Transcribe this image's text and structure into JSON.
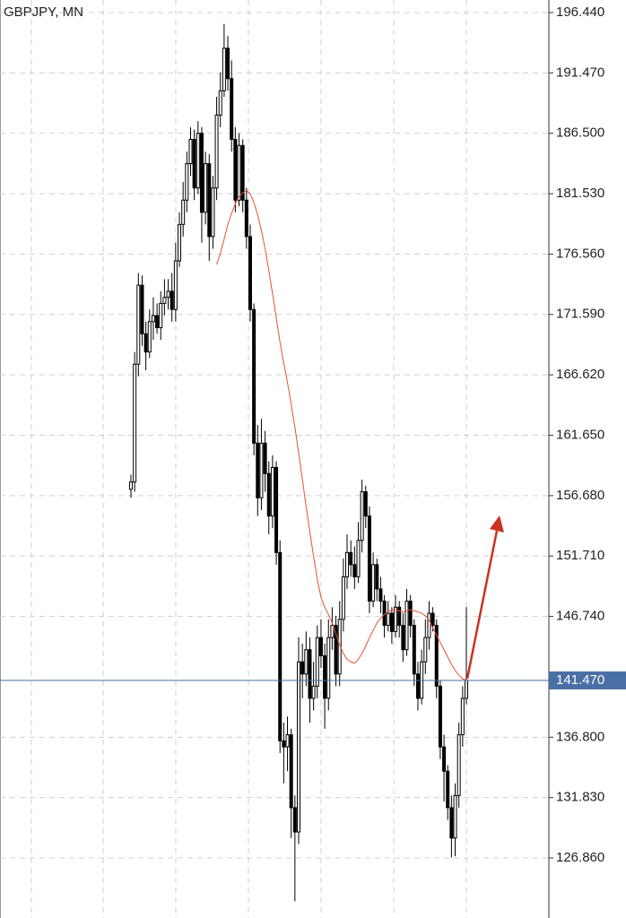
{
  "chart_data": {
    "type": "candlestick",
    "title": "GBPJPY, MN",
    "ylim": [
      121.92,
      197.47
    ],
    "yticks": [
      {
        "value": 196.44,
        "label": "196.440"
      },
      {
        "value": 191.47,
        "label": "191.470"
      },
      {
        "value": 186.5,
        "label": "186.500"
      },
      {
        "value": 181.53,
        "label": "181.530"
      },
      {
        "value": 176.56,
        "label": "176.560"
      },
      {
        "value": 171.59,
        "label": "171.590"
      },
      {
        "value": 166.62,
        "label": "166.620"
      },
      {
        "value": 161.65,
        "label": "161.650"
      },
      {
        "value": 156.68,
        "label": "156.680"
      },
      {
        "value": 151.71,
        "label": "151.710"
      },
      {
        "value": 146.74,
        "label": "146.740"
      },
      {
        "value": 136.8,
        "label": "136.800"
      },
      {
        "value": 131.83,
        "label": "131.830"
      },
      {
        "value": 126.86,
        "label": "126.860"
      }
    ],
    "grid": true,
    "current_price": {
      "value": 141.47,
      "label": "141.470"
    },
    "up_color": "#ffffff",
    "down_color": "#000000",
    "ma_color": "#e8503a",
    "price_line_color": "#4a6fa5",
    "open": [
      157.2,
      157.8,
      167.5,
      174.0,
      170.0,
      168.5,
      171.0,
      171.5,
      170.5,
      172.5,
      173.0,
      173.5,
      172.0,
      176.0,
      179.0,
      181.0,
      184.0,
      186.0,
      182.0,
      186.5,
      180.0,
      184.0,
      178.0,
      182.0,
      188.0,
      190.0,
      193.5,
      191.0,
      186.0,
      181.0,
      185.5,
      181.0,
      178.0,
      172.0,
      161.0,
      156.5,
      161.0,
      158.5,
      155.0,
      159.0,
      152.0,
      136.5,
      136.0,
      137.0,
      131.0,
      129.0,
      143.0,
      142.0,
      144.0,
      140.0,
      141.0,
      145.0,
      143.5,
      140.0,
      145.0,
      146.0,
      142.0,
      146.5,
      150.0,
      152.0,
      151.0,
      150.0,
      153.0,
      157.0,
      155.0,
      148.0,
      151.0,
      149.0,
      148.0,
      146.0,
      147.0,
      145.5,
      147.5,
      146.0,
      144.0,
      148.0,
      146.0,
      142.0,
      140.0,
      143.0,
      145.0,
      147.0,
      146.0,
      141.0,
      136.0,
      134.0,
      131.0,
      128.5,
      132.0,
      137.0,
      140.0
    ],
    "high": [
      158.4,
      168.5,
      175.0,
      174.8,
      171.0,
      172.0,
      173.0,
      172.5,
      173.5,
      174.5,
      174.5,
      175.0,
      177.5,
      180.0,
      182.5,
      185.0,
      187.0,
      186.8,
      187.5,
      187.0,
      185.0,
      184.8,
      183.0,
      189.5,
      191.5,
      195.5,
      194.5,
      192.5,
      187.0,
      186.5,
      186.0,
      182.0,
      179.0,
      172.5,
      162.5,
      163.0,
      162.0,
      159.5,
      160.0,
      159.5,
      153.0,
      138.0,
      138.5,
      137.5,
      132.0,
      145.0,
      144.5,
      145.5,
      145.0,
      143.0,
      146.0,
      146.5,
      144.5,
      146.5,
      147.5,
      146.8,
      148.0,
      151.5,
      153.5,
      153.0,
      152.5,
      154.5,
      158.0,
      157.5,
      155.8,
      152.0,
      151.5,
      150.0,
      148.5,
      148.0,
      147.5,
      148.5,
      148.0,
      147.0,
      149.0,
      148.5,
      146.5,
      143.0,
      144.0,
      146.5,
      148.0,
      147.5,
      146.5,
      141.5,
      137.0,
      134.5,
      132.0,
      133.0,
      138.0,
      141.0,
      147.5
    ],
    "low": [
      156.5,
      157.0,
      166.5,
      169.0,
      167.0,
      168.0,
      169.5,
      170.0,
      169.5,
      171.5,
      172.0,
      171.0,
      171.0,
      175.5,
      178.0,
      180.0,
      183.0,
      181.0,
      181.5,
      177.5,
      179.0,
      176.0,
      177.0,
      181.0,
      187.0,
      189.5,
      190.0,
      185.0,
      180.0,
      180.5,
      180.0,
      177.0,
      171.0,
      160.0,
      155.0,
      155.5,
      157.0,
      153.5,
      154.0,
      151.0,
      135.5,
      133.0,
      134.0,
      128.5,
      123.3,
      128.0,
      140.0,
      141.0,
      138.0,
      139.0,
      140.0,
      142.5,
      137.5,
      139.0,
      144.0,
      141.0,
      141.0,
      145.5,
      149.0,
      150.0,
      149.0,
      149.5,
      152.0,
      154.0,
      147.0,
      147.5,
      148.0,
      147.0,
      145.0,
      145.5,
      144.5,
      145.0,
      145.0,
      143.0,
      143.5,
      145.0,
      141.0,
      139.0,
      139.5,
      142.0,
      144.0,
      145.5,
      140.0,
      135.0,
      131.5,
      130.0,
      126.9,
      127.0,
      131.0,
      136.0,
      139.5
    ],
    "close": [
      157.8,
      167.5,
      174.0,
      170.0,
      168.5,
      171.0,
      171.5,
      170.5,
      172.5,
      173.0,
      173.5,
      172.0,
      176.0,
      179.0,
      181.0,
      184.0,
      186.0,
      182.0,
      186.5,
      180.0,
      184.0,
      178.0,
      182.0,
      188.0,
      190.0,
      193.5,
      191.0,
      186.0,
      181.0,
      185.5,
      181.0,
      178.0,
      172.0,
      161.0,
      156.5,
      161.0,
      158.5,
      155.0,
      159.0,
      152.0,
      136.5,
      136.0,
      137.0,
      131.0,
      129.0,
      143.0,
      142.0,
      144.0,
      140.0,
      141.0,
      145.0,
      143.5,
      140.0,
      145.0,
      146.0,
      142.0,
      146.5,
      150.0,
      152.0,
      151.0,
      150.0,
      153.0,
      157.0,
      155.0,
      148.0,
      151.0,
      149.0,
      148.0,
      146.0,
      147.0,
      145.5,
      147.5,
      146.0,
      144.0,
      148.0,
      146.0,
      142.0,
      140.0,
      143.0,
      145.0,
      147.0,
      146.0,
      141.0,
      136.0,
      134.0,
      131.0,
      128.5,
      132.0,
      137.0,
      140.0,
      141.47
    ],
    "ma": [
      null,
      null,
      null,
      null,
      null,
      null,
      null,
      null,
      null,
      null,
      null,
      null,
      null,
      null,
      null,
      null,
      null,
      null,
      null,
      null,
      null,
      null,
      null,
      175.7,
      176.6,
      177.8,
      179.0,
      179.9,
      180.7,
      181.3,
      181.6,
      181.8,
      181.5,
      180.8,
      179.8,
      178.5,
      177.0,
      175.2,
      173.3,
      171.3,
      169.3,
      167.6,
      166.0,
      164.2,
      162.3,
      160.2,
      158.0,
      155.8,
      153.7,
      151.7,
      149.8,
      148.3,
      147.5,
      146.9,
      146.2,
      145.3,
      144.4,
      143.7,
      143.2,
      143.0,
      142.9,
      143.2,
      143.7,
      144.3,
      145.0,
      145.6,
      146.2,
      146.6,
      146.9,
      147.1,
      147.3,
      147.3,
      147.2,
      147.1,
      147.2,
      147.3,
      147.2,
      147.1,
      147.0,
      146.8,
      146.4,
      145.8,
      145.2,
      144.6,
      144.0,
      143.4,
      142.8,
      142.3,
      141.9,
      141.6,
      141.5
    ]
  }
}
